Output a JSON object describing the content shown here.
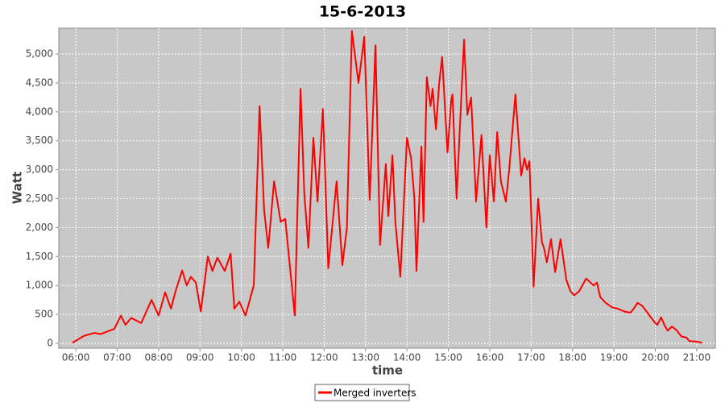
{
  "chart_data": {
    "type": "line",
    "title": "15-6-2013",
    "xlabel": "time",
    "ylabel": "Watt",
    "xlim": [
      5.59,
      21.45
    ],
    "ylim": [
      -84,
      5446
    ],
    "xticks": [
      {
        "value": 6,
        "label": "06:00"
      },
      {
        "value": 7,
        "label": "07:00"
      },
      {
        "value": 8,
        "label": "08:00"
      },
      {
        "value": 9,
        "label": "09:00"
      },
      {
        "value": 10,
        "label": "10:00"
      },
      {
        "value": 11,
        "label": "11:00"
      },
      {
        "value": 12,
        "label": "12:00"
      },
      {
        "value": 13,
        "label": "13:00"
      },
      {
        "value": 14,
        "label": "14:00"
      },
      {
        "value": 15,
        "label": "15:00"
      },
      {
        "value": 16,
        "label": "16:00"
      },
      {
        "value": 17,
        "label": "17:00"
      },
      {
        "value": 18,
        "label": "18:00"
      },
      {
        "value": 19,
        "label": "19:00"
      },
      {
        "value": 20,
        "label": "20:00"
      },
      {
        "value": 21,
        "label": "21:00"
      }
    ],
    "yticks": [
      0,
      500,
      {
        "value": 1000,
        "label": "1,000"
      },
      {
        "value": 1500,
        "label": "1,500"
      },
      {
        "value": 2000,
        "label": "2,000"
      },
      {
        "value": 2500,
        "label": "2,500"
      },
      {
        "value": 3000,
        "label": "3,000"
      },
      {
        "value": 3500,
        "label": "3,500"
      },
      {
        "value": 4000,
        "label": "4,000"
      },
      {
        "value": 4500,
        "label": "4,500"
      },
      {
        "value": 5000,
        "label": "5,000"
      }
    ],
    "grid": true,
    "legend": "bottom",
    "x": [
      5.92,
      6.2,
      6.45,
      6.6,
      6.93,
      7.09,
      7.2,
      7.34,
      7.58,
      7.83,
      8.0,
      8.16,
      8.3,
      8.41,
      8.57,
      8.68,
      8.78,
      8.9,
      9.02,
      9.19,
      9.3,
      9.42,
      9.6,
      9.74,
      9.83,
      9.95,
      10.1,
      10.3,
      10.44,
      10.55,
      10.65,
      10.79,
      10.95,
      11.06,
      11.29,
      11.43,
      11.52,
      11.62,
      11.74,
      11.84,
      11.97,
      12.1,
      12.3,
      12.44,
      12.55,
      12.67,
      12.83,
      12.97,
      13.1,
      13.24,
      13.35,
      13.49,
      13.55,
      13.65,
      13.72,
      13.84,
      13.93,
      14.0,
      14.1,
      14.18,
      14.23,
      14.35,
      14.4,
      14.48,
      14.57,
      14.62,
      14.7,
      14.78,
      14.85,
      14.98,
      15.07,
      15.1,
      15.2,
      15.27,
      15.38,
      15.46,
      15.55,
      15.67,
      15.8,
      15.92,
      16.0,
      16.1,
      16.18,
      16.27,
      16.39,
      16.47,
      16.62,
      16.76,
      16.84,
      16.9,
      16.96,
      17.06,
      17.17,
      17.26,
      17.31,
      17.38,
      17.48,
      17.58,
      17.71,
      17.85,
      17.95,
      18.04,
      18.16,
      18.33,
      18.51,
      18.59,
      18.67,
      18.8,
      18.96,
      19.09,
      19.25,
      19.4,
      19.48,
      19.57,
      19.68,
      19.79,
      19.89,
      20.0,
      20.05,
      20.14,
      20.23,
      20.3,
      20.4,
      20.51,
      20.63,
      20.75,
      20.82,
      21.0,
      21.13
    ],
    "series": [
      {
        "name": "Merged inverters",
        "color": "#ff0000",
        "values": [
          10,
          130,
          180,
          160,
          250,
          480,
          320,
          440,
          350,
          750,
          480,
          880,
          600,
          900,
          1260,
          1000,
          1150,
          1050,
          550,
          1500,
          1250,
          1480,
          1250,
          1550,
          600,
          720,
          480,
          1000,
          4100,
          2300,
          1650,
          2800,
          2100,
          2150,
          480,
          4400,
          2600,
          1650,
          3550,
          2450,
          4050,
          1300,
          2800,
          1350,
          2000,
          5400,
          4500,
          5300,
          2480,
          5150,
          1700,
          3100,
          2200,
          3250,
          2100,
          1150,
          2500,
          3550,
          3200,
          2500,
          1250,
          3400,
          2100,
          4600,
          4100,
          4400,
          3700,
          4500,
          4950,
          3300,
          4200,
          4300,
          2500,
          3600,
          5250,
          3950,
          4250,
          2450,
          3600,
          2000,
          3250,
          2450,
          3650,
          2800,
          2450,
          3000,
          4300,
          2900,
          3200,
          3000,
          3150,
          980,
          2500,
          1750,
          1650,
          1400,
          1800,
          1230,
          1800,
          1100,
          900,
          830,
          900,
          1120,
          1000,
          1050,
          800,
          700,
          620,
          600,
          550,
          530,
          600,
          700,
          650,
          550,
          450,
          350,
          320,
          450,
          300,
          220,
          290,
          230,
          120,
          100,
          40,
          30,
          10
        ]
      }
    ]
  }
}
